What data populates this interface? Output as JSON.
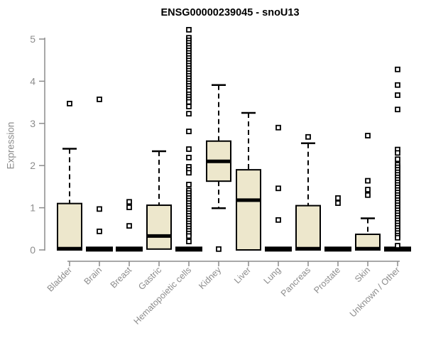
{
  "chart_data": {
    "type": "boxplot",
    "title": "ENSG00000239045 - snoU13",
    "xlabel": "",
    "ylabel": "Expression",
    "ylim": [
      0,
      5.3
    ],
    "yticks": [
      0,
      1,
      2,
      3,
      4,
      5
    ],
    "grid": false,
    "legend": null,
    "x_label_rotation_deg": 45,
    "colors": {
      "box_fill": "#EDE7CC",
      "box_border": "#000000",
      "median": "#000000",
      "whisker": "#000000",
      "outlier_stroke": "#000000",
      "axis": "#8C8C8C",
      "tick_label": "#8C8C8C",
      "title": "#000000",
      "background": "#FFFFFF"
    },
    "categories": [
      "Bladder",
      "Brain",
      "Breast",
      "Gastric",
      "Hematopoietic cells",
      "Kidney",
      "Liver",
      "Lung",
      "Pancreas",
      "Prostate",
      "Skin",
      "Unknown / Other"
    ],
    "boxes": [
      {
        "category": "Bladder",
        "q1": 0,
        "median": 0.03,
        "q3": 1.1,
        "whisker_low": 0,
        "whisker_high": 2.4,
        "outliers": [
          3.47
        ]
      },
      {
        "category": "Brain",
        "q1": 0,
        "median": 0.02,
        "q3": 0.03,
        "whisker_low": 0,
        "whisker_high": 0.03,
        "outliers": [
          3.57,
          0.97,
          0.44
        ]
      },
      {
        "category": "Breast",
        "q1": 0,
        "median": 0.02,
        "q3": 0.03,
        "whisker_low": 0,
        "whisker_high": 0.03,
        "outliers": [
          1.14,
          1.01,
          0.57
        ]
      },
      {
        "category": "Gastric",
        "q1": 0.02,
        "median": 0.33,
        "q3": 1.06,
        "whisker_low": 0,
        "whisker_high": 2.34,
        "outliers": []
      },
      {
        "category": "Hematopoietic cells",
        "q1": 0,
        "median": 0.02,
        "q3": 0.03,
        "whisker_low": 0,
        "whisker_high": 0.03,
        "outliers": [
          5.22,
          5.03,
          4.97,
          4.91,
          4.85,
          4.79,
          4.73,
          4.67,
          4.61,
          4.55,
          4.49,
          4.43,
          4.37,
          4.31,
          4.25,
          4.19,
          4.13,
          4.07,
          4.01,
          3.95,
          3.89,
          3.83,
          3.77,
          3.69,
          3.63,
          3.57,
          3.51,
          3.4,
          3.23,
          2.81,
          2.39,
          2.19,
          1.97,
          1.9,
          1.83,
          1.55,
          1.41,
          1.35,
          1.29,
          1.23,
          1.17,
          1.11,
          1.05,
          0.99,
          0.93,
          0.87,
          0.81,
          0.75,
          0.69,
          0.63,
          0.57,
          0.51,
          0.45,
          0.39,
          0.33,
          0.2
        ]
      },
      {
        "category": "Kidney",
        "q1": 1.63,
        "median": 2.1,
        "q3": 2.58,
        "whisker_low": 0.99,
        "whisker_high": 3.91,
        "outliers": [
          0.02
        ]
      },
      {
        "category": "Liver",
        "q1": 0,
        "median": 1.18,
        "q3": 1.9,
        "whisker_low": 0,
        "whisker_high": 3.25,
        "outliers": []
      },
      {
        "category": "Lung",
        "q1": 0,
        "median": 0.02,
        "q3": 0.03,
        "whisker_low": 0,
        "whisker_high": 0.03,
        "outliers": [
          2.9,
          1.46,
          0.71
        ]
      },
      {
        "category": "Pancreas",
        "q1": 0,
        "median": 0.03,
        "q3": 1.05,
        "whisker_low": 0,
        "whisker_high": 2.53,
        "outliers": [
          2.68
        ]
      },
      {
        "category": "Prostate",
        "q1": 0,
        "median": 0.02,
        "q3": 0.03,
        "whisker_low": 0,
        "whisker_high": 0.03,
        "outliers": [
          1.23,
          1.11
        ]
      },
      {
        "category": "Skin",
        "q1": 0,
        "median": 0.03,
        "q3": 0.37,
        "whisker_low": 0,
        "whisker_high": 0.75,
        "outliers": [
          2.71,
          1.64,
          1.43,
          1.3
        ]
      },
      {
        "category": "Unknown / Other",
        "q1": 0,
        "median": 0.02,
        "q3": 0.03,
        "whisker_low": 0,
        "whisker_high": 0.03,
        "outliers": [
          4.28,
          3.91,
          3.67,
          3.33,
          2.38,
          2.3,
          2.15,
          2.02,
          1.96,
          1.9,
          1.84,
          1.78,
          1.72,
          1.66,
          1.6,
          1.54,
          1.48,
          1.42,
          1.36,
          1.3,
          1.24,
          1.18,
          1.12,
          1.06,
          1.0,
          0.94,
          0.88,
          0.82,
          0.76,
          0.7,
          0.64,
          0.58,
          0.52,
          0.46,
          0.4,
          0.34,
          0.29,
          0.1
        ]
      }
    ]
  }
}
